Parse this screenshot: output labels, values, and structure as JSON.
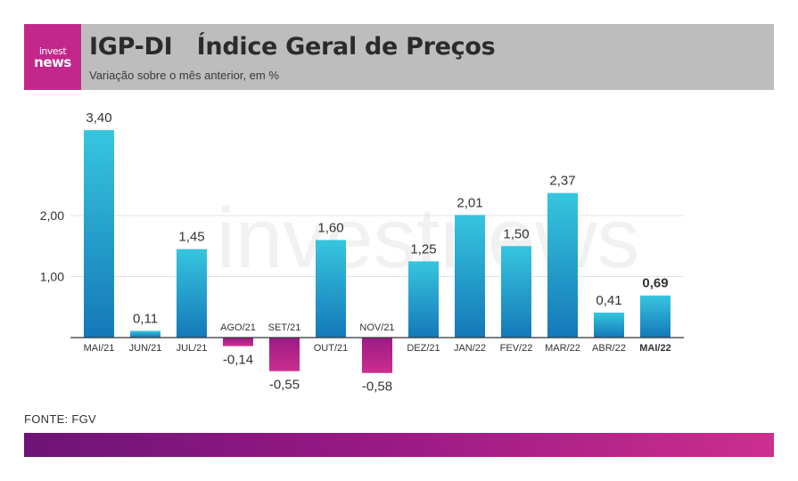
{
  "header": {
    "logo_line1": "invest",
    "logo_line2": "news",
    "title": "IGP-DI   Índice Geral de Preços",
    "subtitle": "Variação sobre o mês anterior, em %"
  },
  "watermark": "investnews",
  "source": "FONTE: FGV",
  "colors": {
    "header_bg": "#bdbdbd",
    "brand_magenta": "#c4278c",
    "positive_bar_top": "#36c6df",
    "positive_bar_bottom": "#1478b8",
    "negative_bar_top": "#9b1a85",
    "negative_bar_bottom": "#cc2e8e",
    "footer_start": "#6e1377",
    "footer_end": "#cc2e8e"
  },
  "chart_data": {
    "type": "bar",
    "categories": [
      "MAI/21",
      "JUN/21",
      "JUL/21",
      "AGO/21",
      "SET/21",
      "OUT/21",
      "NOV/21",
      "DEZ/21",
      "JAN/22",
      "FEV/22",
      "MAR/22",
      "ABR/22",
      "MAI/22"
    ],
    "values": [
      3.4,
      0.11,
      1.45,
      -0.14,
      -0.55,
      1.6,
      -0.58,
      1.25,
      2.01,
      1.5,
      2.37,
      0.41,
      0.69
    ],
    "value_labels": [
      "3,40",
      "0,11",
      "1,45",
      "-0,14",
      "-0,55",
      "1,60",
      "-0,58",
      "1,25",
      "2,01",
      "1,50",
      "2,37",
      "0,41",
      "0,69"
    ],
    "y_ticks": [
      1,
      2
    ],
    "y_tick_labels": [
      "1,00",
      "2,00"
    ],
    "ylim": [
      -0.6,
      3.5
    ],
    "highlight_index": 12,
    "grid": true
  }
}
